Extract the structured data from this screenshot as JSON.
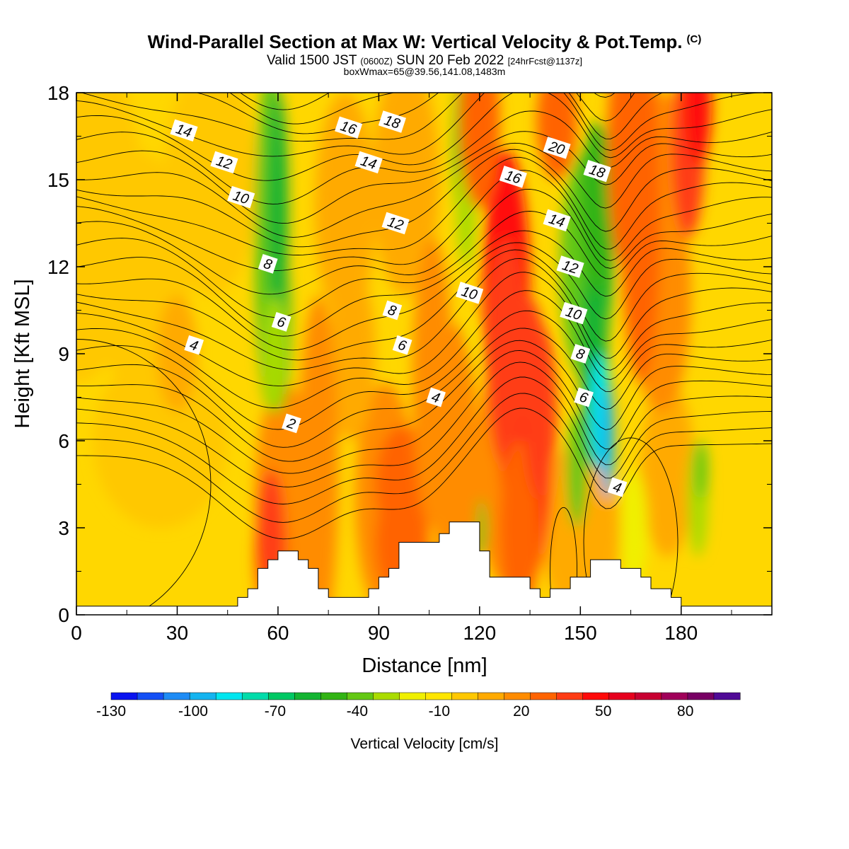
{
  "header": {
    "title": "Wind-Parallel Section at Max W: Vertical Velocity & Pot.Temp.",
    "copyright": "(C)",
    "valid_a": "Valid 1500 JST",
    "valid_b": "(0600Z)",
    "valid_c": "SUN 20 Feb 2022",
    "valid_d": "[24hrFcst@1137z]",
    "box": "boxWmax=65@39.56,141.08,1483m"
  },
  "chart_data": {
    "type": "heatmap",
    "xlabel": "Distance [nm]",
    "ylabel": "Height [Kft MSL]",
    "xlim": [
      0,
      207
    ],
    "ylim": [
      0,
      18
    ],
    "x_ticks": [
      "0",
      "30",
      "60",
      "90",
      "120",
      "150",
      "180"
    ],
    "y_ticks": [
      "0",
      "3",
      "6",
      "9",
      "12",
      "15",
      "18"
    ],
    "colorbar": {
      "label": "Vertical Velocity [cm/s]",
      "ticks": [
        "-130",
        "-100",
        "-70",
        "-40",
        "-10",
        "20",
        "50",
        "80"
      ],
      "min": -130,
      "max": 100,
      "colors": [
        "#0a14f0",
        "#1450f5",
        "#1e8cf5",
        "#14b4f0",
        "#00e6f0",
        "#00dcaa",
        "#00c864",
        "#14b432",
        "#32b414",
        "#64c814",
        "#aadc00",
        "#f0f000",
        "#ffe600",
        "#ffc800",
        "#ffaa00",
        "#ff8c00",
        "#ff6400",
        "#ff3c14",
        "#ff0a0a",
        "#e6001e",
        "#c80032",
        "#a0005a",
        "#780064",
        "#500a96"
      ]
    },
    "terrain": [
      [
        0,
        0.3
      ],
      [
        48,
        0.3
      ],
      [
        48,
        0.6
      ],
      [
        51,
        0.6
      ],
      [
        51,
        0.9
      ],
      [
        54,
        0.9
      ],
      [
        54,
        1.6
      ],
      [
        57,
        1.6
      ],
      [
        57,
        1.9
      ],
      [
        60,
        1.9
      ],
      [
        60,
        2.2
      ],
      [
        66,
        2.2
      ],
      [
        66,
        1.9
      ],
      [
        69,
        1.9
      ],
      [
        69,
        1.6
      ],
      [
        72,
        1.6
      ],
      [
        72,
        0.9
      ],
      [
        75,
        0.9
      ],
      [
        75,
        0.6
      ],
      [
        87,
        0.6
      ],
      [
        87,
        0.9
      ],
      [
        90,
        0.9
      ],
      [
        90,
        1.3
      ],
      [
        93,
        1.3
      ],
      [
        93,
        1.6
      ],
      [
        96,
        1.6
      ],
      [
        96,
        2.5
      ],
      [
        108,
        2.5
      ],
      [
        108,
        2.8
      ],
      [
        111,
        2.8
      ],
      [
        111,
        3.2
      ],
      [
        120,
        3.2
      ],
      [
        120,
        2.2
      ],
      [
        123,
        2.2
      ],
      [
        123,
        1.3
      ],
      [
        135,
        1.3
      ],
      [
        135,
        0.9
      ],
      [
        138,
        0.9
      ],
      [
        138,
        0.6
      ],
      [
        141,
        0.6
      ],
      [
        141,
        0.9
      ],
      [
        147,
        0.9
      ],
      [
        147,
        1.3
      ],
      [
        153,
        1.3
      ],
      [
        153,
        1.9
      ],
      [
        162,
        1.9
      ],
      [
        162,
        1.6
      ],
      [
        168,
        1.6
      ],
      [
        168,
        1.3
      ],
      [
        171,
        1.3
      ],
      [
        171,
        0.9
      ],
      [
        177,
        0.9
      ],
      [
        177,
        0.6
      ],
      [
        180,
        0.6
      ],
      [
        180,
        0.3
      ],
      [
        207,
        0.3
      ]
    ],
    "theta_labels": [
      {
        "text": "14",
        "x": 32,
        "y": 16.7
      },
      {
        "text": "12",
        "x": 44,
        "y": 15.6
      },
      {
        "text": "10",
        "x": 49,
        "y": 14.4
      },
      {
        "text": "8",
        "x": 57,
        "y": 12.1
      },
      {
        "text": "6",
        "x": 61,
        "y": 10.1
      },
      {
        "text": "4",
        "x": 35,
        "y": 9.3
      },
      {
        "text": "2",
        "x": 64,
        "y": 6.6
      },
      {
        "text": "16",
        "x": 81,
        "y": 16.8
      },
      {
        "text": "18",
        "x": 94,
        "y": 17.0
      },
      {
        "text": "14",
        "x": 87,
        "y": 15.6
      },
      {
        "text": "12",
        "x": 95,
        "y": 13.5
      },
      {
        "text": "8",
        "x": 94,
        "y": 10.5
      },
      {
        "text": "6",
        "x": 97,
        "y": 9.3
      },
      {
        "text": "10",
        "x": 117,
        "y": 11.1
      },
      {
        "text": "4",
        "x": 107,
        "y": 7.5
      },
      {
        "text": "20",
        "x": 143,
        "y": 16.1
      },
      {
        "text": "16",
        "x": 130,
        "y": 15.1
      },
      {
        "text": "18",
        "x": 155,
        "y": 15.3
      },
      {
        "text": "14",
        "x": 143,
        "y": 13.6
      },
      {
        "text": "12",
        "x": 147,
        "y": 12.0
      },
      {
        "text": "10",
        "x": 148,
        "y": 10.4
      },
      {
        "text": "8",
        "x": 150,
        "y": 9.0
      },
      {
        "text": "6",
        "x": 151,
        "y": 7.5
      },
      {
        "text": "4",
        "x": 161,
        "y": 4.4
      }
    ]
  }
}
